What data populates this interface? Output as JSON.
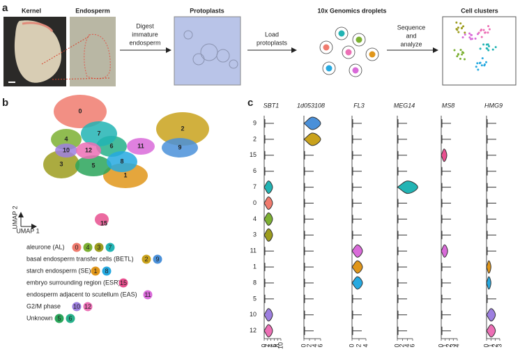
{
  "panels": [
    "a",
    "b",
    "c"
  ],
  "workflow": {
    "titles": [
      "Kernel",
      "Endosperm",
      "Protoplasts",
      "10x Genomics droplets",
      "Cell clusters"
    ],
    "steps": [
      [
        "Digest",
        "immature",
        "endosperm"
      ],
      [
        "Load",
        "protoplasts"
      ],
      [
        "Sequence",
        "and",
        "analyze"
      ]
    ]
  },
  "cluster_colors": {
    "0": "#f07b6e",
    "1": "#e0961a",
    "2": "#c9a21c",
    "3": "#9c9c1e",
    "4": "#7cb032",
    "5": "#2aa55a",
    "6": "#26b08a",
    "7": "#22b4b4",
    "8": "#26a9e0",
    "9": "#4a90d9",
    "10": "#9d7fe0",
    "11": "#d96ad9",
    "12": "#ec6fb5",
    "15": "#e8508f"
  },
  "umap": {
    "clusters": [
      "0",
      "1",
      "2",
      "3",
      "4",
      "5",
      "6",
      "7",
      "8",
      "9",
      "10",
      "11",
      "12",
      "15"
    ],
    "axis_x": "UMAP 1",
    "axis_y": "UMAP 2"
  },
  "legend": [
    {
      "label": "aleurone (AL)",
      "clusters": [
        "0",
        "4",
        "3",
        "7"
      ]
    },
    {
      "label": "basal endosperm transfer cells (BETL)",
      "clusters": [
        "2",
        "9"
      ]
    },
    {
      "label": "starch endosperm (SE)",
      "clusters": [
        "1",
        "8"
      ]
    },
    {
      "label": "embryo surrounding region (ESR)",
      "clusters": [
        "15"
      ]
    },
    {
      "label": "endosperm adjacent to scutellum (EAS)",
      "clusters": [
        "11"
      ]
    },
    {
      "label": "G2/M phase",
      "clusters": [
        "10",
        "12"
      ]
    },
    {
      "label": "Unknown",
      "clusters": [
        "5",
        "6"
      ]
    }
  ],
  "violin": {
    "clusters": [
      "9",
      "2",
      "15",
      "6",
      "7",
      "0",
      "4",
      "3",
      "11",
      "1",
      "8",
      "5",
      "10",
      "12"
    ],
    "genes": [
      {
        "name": "SBT1",
        "xlim": [
          0,
          10
        ],
        "xticks": [
          0,
          2,
          4,
          6,
          8,
          10
        ],
        "values": [
          0,
          0,
          0,
          0,
          2.5,
          2.5,
          2.5,
          2.5,
          0,
          0,
          0,
          0,
          2.5,
          2.5
        ]
      },
      {
        "name": "1d053108",
        "xlim": [
          0,
          6
        ],
        "xticks": [
          0,
          2,
          4,
          6
        ],
        "values": [
          3,
          3,
          0,
          0,
          0,
          0,
          0,
          0,
          0,
          0,
          0,
          0,
          0,
          0
        ]
      },
      {
        "name": "FL3",
        "xlim": [
          0,
          4
        ],
        "xticks": [
          0,
          2,
          4
        ],
        "values": [
          0,
          0,
          0,
          0,
          0,
          0,
          0,
          0,
          1.5,
          1.5,
          1.5,
          0,
          0,
          0
        ]
      },
      {
        "name": "MEG14",
        "xlim": [
          0,
          6
        ],
        "xticks": [
          0,
          2,
          4,
          6
        ],
        "values": [
          0,
          0,
          0,
          0,
          4,
          0,
          0,
          0,
          0,
          0,
          0,
          0,
          0,
          0
        ]
      },
      {
        "name": "MS8",
        "xlim": [
          0,
          4
        ],
        "xticks": [
          0,
          1,
          2,
          3,
          4
        ],
        "values": [
          0,
          0,
          0.7,
          0,
          0,
          0,
          0,
          0,
          0.8,
          0,
          0,
          0,
          0,
          0
        ]
      },
      {
        "name": "HMG9",
        "xlim": [
          0,
          3
        ],
        "xticks": [
          0,
          1,
          2,
          3
        ],
        "values": [
          0,
          0,
          0,
          0,
          0,
          0,
          0,
          0,
          0,
          0.5,
          0.5,
          0,
          1,
          1
        ]
      }
    ]
  }
}
